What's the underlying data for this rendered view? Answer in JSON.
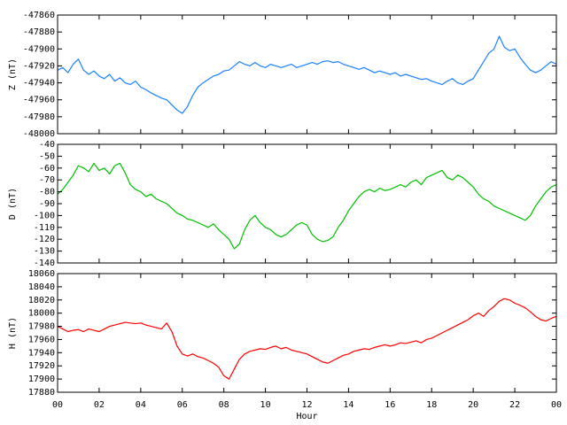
{
  "chart_data": [
    {
      "type": "line",
      "ylabel": "Z (nT)",
      "color": "#1a80ff",
      "xlim": [
        0,
        24
      ],
      "xticks": [
        0,
        2,
        4,
        6,
        8,
        10,
        12,
        14,
        16,
        18,
        20,
        22,
        24
      ],
      "ylim": [
        -48000,
        -47860
      ],
      "yticks": [
        -48000,
        -47980,
        -47960,
        -47940,
        -47920,
        -47900,
        -47880,
        -47860
      ],
      "x": [
        0,
        0.25,
        0.5,
        0.75,
        1,
        1.25,
        1.5,
        1.75,
        2,
        2.25,
        2.5,
        2.75,
        3,
        3.25,
        3.5,
        3.75,
        4,
        4.25,
        4.5,
        4.75,
        5,
        5.25,
        5.5,
        5.75,
        6,
        6.25,
        6.5,
        6.75,
        7,
        7.25,
        7.5,
        7.75,
        8,
        8.25,
        8.5,
        8.75,
        9,
        9.25,
        9.5,
        9.75,
        10,
        10.25,
        10.5,
        10.75,
        11,
        11.25,
        11.5,
        11.75,
        12,
        12.25,
        12.5,
        12.75,
        13,
        13.25,
        13.5,
        13.75,
        14,
        14.25,
        14.5,
        14.75,
        15,
        15.25,
        15.5,
        15.75,
        16,
        16.25,
        16.5,
        16.75,
        17,
        17.25,
        17.5,
        17.75,
        18,
        18.25,
        18.5,
        18.75,
        19,
        19.25,
        19.5,
        19.75,
        20,
        20.25,
        20.5,
        20.75,
        21,
        21.25,
        21.5,
        21.75,
        22,
        22.25,
        22.5,
        22.75,
        23,
        23.25,
        23.5,
        23.75,
        24
      ],
      "values": [
        -47925,
        -47922,
        -47928,
        -47918,
        -47912,
        -47925,
        -47930,
        -47926,
        -47932,
        -47935,
        -47930,
        -47938,
        -47934,
        -47940,
        -47942,
        -47938,
        -47945,
        -47948,
        -47952,
        -47955,
        -47958,
        -47960,
        -47966,
        -47972,
        -47976,
        -47968,
        -47955,
        -47945,
        -47940,
        -47936,
        -47932,
        -47930,
        -47926,
        -47925,
        -47920,
        -47915,
        -47918,
        -47920,
        -47916,
        -47920,
        -47922,
        -47918,
        -47920,
        -47922,
        -47920,
        -47918,
        -47922,
        -47920,
        -47918,
        -47916,
        -47918,
        -47915,
        -47914,
        -47916,
        -47915,
        -47918,
        -47920,
        -47922,
        -47924,
        -47922,
        -47925,
        -47928,
        -47926,
        -47928,
        -47930,
        -47928,
        -47932,
        -47930,
        -47932,
        -47934,
        -47936,
        -47935,
        -47938,
        -47940,
        -47942,
        -47938,
        -47935,
        -47940,
        -47942,
        -47938,
        -47935,
        -47925,
        -47915,
        -47905,
        -47900,
        -47885,
        -47898,
        -47902,
        -47900,
        -47910,
        -47918,
        -47925,
        -47928,
        -47925,
        -47920,
        -47915,
        -47918
      ]
    },
    {
      "type": "line",
      "ylabel": "D (nT)",
      "color": "#00c000",
      "xlim": [
        0,
        24
      ],
      "xticks": [
        0,
        2,
        4,
        6,
        8,
        10,
        12,
        14,
        16,
        18,
        20,
        22,
        24
      ],
      "ylim": [
        -140,
        -40
      ],
      "yticks": [
        -140,
        -130,
        -120,
        -110,
        -100,
        -90,
        -80,
        -70,
        -60,
        -50,
        -40
      ],
      "x": [
        0,
        0.25,
        0.5,
        0.75,
        1,
        1.25,
        1.5,
        1.75,
        2,
        2.25,
        2.5,
        2.75,
        3,
        3.25,
        3.5,
        3.75,
        4,
        4.25,
        4.5,
        4.75,
        5,
        5.25,
        5.5,
        5.75,
        6,
        6.25,
        6.5,
        6.75,
        7,
        7.25,
        7.5,
        7.75,
        8,
        8.25,
        8.5,
        8.75,
        9,
        9.25,
        9.5,
        9.75,
        10,
        10.25,
        10.5,
        10.75,
        11,
        11.25,
        11.5,
        11.75,
        12,
        12.25,
        12.5,
        12.75,
        13,
        13.25,
        13.5,
        13.75,
        14,
        14.25,
        14.5,
        14.75,
        15,
        15.25,
        15.5,
        15.75,
        16,
        16.25,
        16.5,
        16.75,
        17,
        17.25,
        17.5,
        17.75,
        18,
        18.25,
        18.5,
        18.75,
        19,
        19.25,
        19.5,
        19.75,
        20,
        20.25,
        20.5,
        20.75,
        21,
        21.25,
        21.5,
        21.75,
        22,
        22.25,
        22.5,
        22.75,
        23,
        23.25,
        23.5,
        23.75,
        24
      ],
      "values": [
        -82,
        -78,
        -72,
        -66,
        -58,
        -60,
        -63,
        -56,
        -62,
        -60,
        -65,
        -58,
        -56,
        -64,
        -74,
        -78,
        -80,
        -84,
        -82,
        -86,
        -88,
        -90,
        -94,
        -98,
        -100,
        -103,
        -104,
        -106,
        -108,
        -110,
        -107,
        -112,
        -116,
        -120,
        -128,
        -124,
        -112,
        -104,
        -100,
        -106,
        -110,
        -112,
        -116,
        -118,
        -116,
        -112,
        -108,
        -106,
        -108,
        -116,
        -120,
        -122,
        -121,
        -118,
        -110,
        -104,
        -96,
        -90,
        -84,
        -80,
        -78,
        -80,
        -77,
        -79,
        -78,
        -76,
        -74,
        -76,
        -72,
        -70,
        -74,
        -68,
        -66,
        -64,
        -62,
        -68,
        -70,
        -66,
        -68,
        -72,
        -76,
        -82,
        -86,
        -88,
        -92,
        -94,
        -96,
        -98,
        -100,
        -102,
        -104,
        -100,
        -92,
        -86,
        -80,
        -76,
        -74
      ]
    },
    {
      "type": "line",
      "ylabel": "H (nT)",
      "xlabel": "Hour",
      "color": "#ff0000",
      "xlim": [
        0,
        24
      ],
      "xticks": [
        {
          "value": 0,
          "label": "00"
        },
        {
          "value": 2,
          "label": "02"
        },
        {
          "value": 4,
          "label": "04"
        },
        {
          "value": 6,
          "label": "06"
        },
        {
          "value": 8,
          "label": "08"
        },
        10,
        12,
        14,
        16,
        18,
        20,
        22,
        {
          "value": 24,
          "label": "00"
        }
      ],
      "ylim": [
        17880,
        18060
      ],
      "yticks": [
        17880,
        17900,
        17920,
        17940,
        17960,
        17980,
        18000,
        18020,
        18040,
        18060
      ],
      "x": [
        0,
        0.25,
        0.5,
        0.75,
        1,
        1.25,
        1.5,
        1.75,
        2,
        2.25,
        2.5,
        2.75,
        3,
        3.25,
        3.5,
        3.75,
        4,
        4.25,
        4.5,
        4.75,
        5,
        5.25,
        5.5,
        5.75,
        6,
        6.25,
        6.5,
        6.75,
        7,
        7.25,
        7.5,
        7.75,
        8,
        8.25,
        8.5,
        8.75,
        9,
        9.25,
        9.5,
        9.75,
        10,
        10.25,
        10.5,
        10.75,
        11,
        11.25,
        11.5,
        11.75,
        12,
        12.25,
        12.5,
        12.75,
        13,
        13.25,
        13.5,
        13.75,
        14,
        14.25,
        14.5,
        14.75,
        15,
        15.25,
        15.5,
        15.75,
        16,
        16.25,
        16.5,
        16.75,
        17,
        17.25,
        17.5,
        17.75,
        18,
        18.25,
        18.5,
        18.75,
        19,
        19.25,
        19.5,
        19.75,
        20,
        20.25,
        20.5,
        20.75,
        21,
        21.25,
        21.5,
        21.75,
        22,
        22.25,
        22.5,
        22.75,
        23,
        23.25,
        23.5,
        23.75,
        24
      ],
      "values": [
        17980,
        17976,
        17972,
        17974,
        17975,
        17972,
        17976,
        17974,
        17972,
        17976,
        17980,
        17982,
        17984,
        17986,
        17985,
        17984,
        17985,
        17982,
        17980,
        17978,
        17976,
        17985,
        17972,
        17950,
        17938,
        17935,
        17938,
        17934,
        17932,
        17928,
        17924,
        17918,
        17905,
        17900,
        17915,
        17930,
        17938,
        17942,
        17944,
        17946,
        17945,
        17948,
        17950,
        17946,
        17948,
        17944,
        17942,
        17940,
        17938,
        17934,
        17930,
        17926,
        17924,
        17928,
        17932,
        17936,
        17938,
        17942,
        17944,
        17946,
        17945,
        17948,
        17950,
        17952,
        17950,
        17952,
        17955,
        17954,
        17956,
        17958,
        17955,
        17960,
        17962,
        17966,
        17970,
        17974,
        17978,
        17982,
        17986,
        17990,
        17996,
        18000,
        17995,
        18004,
        18010,
        18018,
        18022,
        18020,
        18015,
        18012,
        18008,
        18002,
        17995,
        17990,
        17988,
        17992,
        17995
      ]
    }
  ]
}
